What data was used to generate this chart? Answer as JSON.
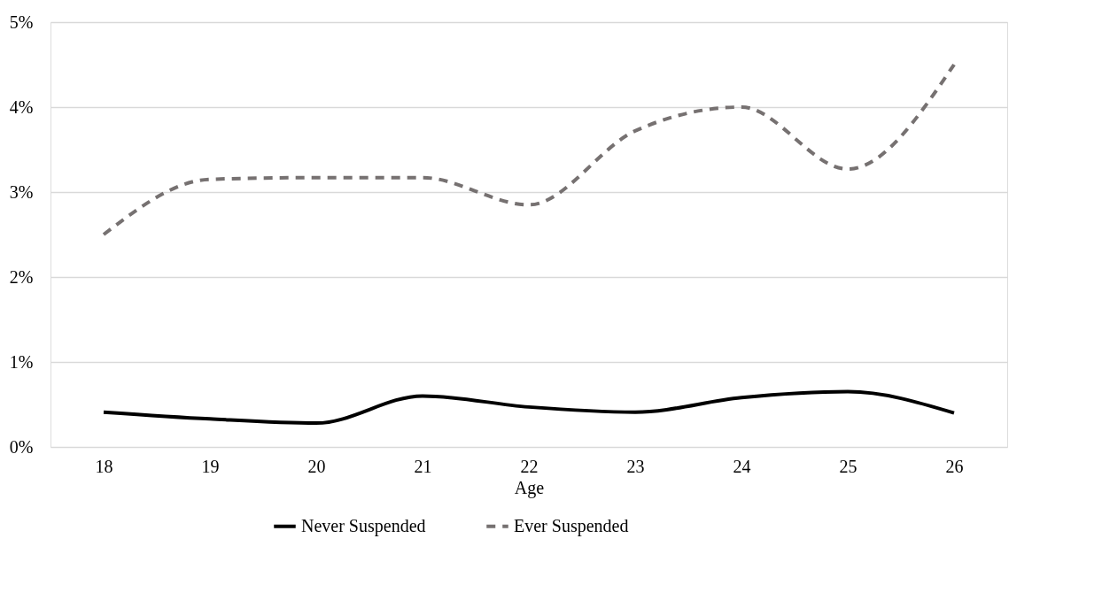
{
  "chart_data": {
    "type": "line",
    "xlabel": "Age",
    "categories": [
      "18",
      "19",
      "20",
      "21",
      "22",
      "23",
      "24",
      "25",
      "26"
    ],
    "series": [
      {
        "name": "Never Suspended",
        "color": "#000000",
        "line_style": "solid",
        "values": [
          0.41,
          0.33,
          0.28,
          0.6,
          0.47,
          0.41,
          0.58,
          0.65,
          0.4
        ]
      },
      {
        "name": "Ever Suspended",
        "color": "#767171",
        "line_style": "dashed",
        "values": [
          2.5,
          3.15,
          3.17,
          3.17,
          2.85,
          3.72,
          4.0,
          3.27,
          4.5
        ]
      }
    ],
    "ylim": [
      0,
      5
    ],
    "yticks": [
      {
        "value": 0,
        "label": "0%"
      },
      {
        "value": 1,
        "label": "1%"
      },
      {
        "value": 2,
        "label": "2%"
      },
      {
        "value": 3,
        "label": "3%"
      },
      {
        "value": 4,
        "label": "4%"
      },
      {
        "value": 5,
        "label": "5%"
      }
    ],
    "grid": "y",
    "legend": "bottom",
    "marker": "none"
  }
}
